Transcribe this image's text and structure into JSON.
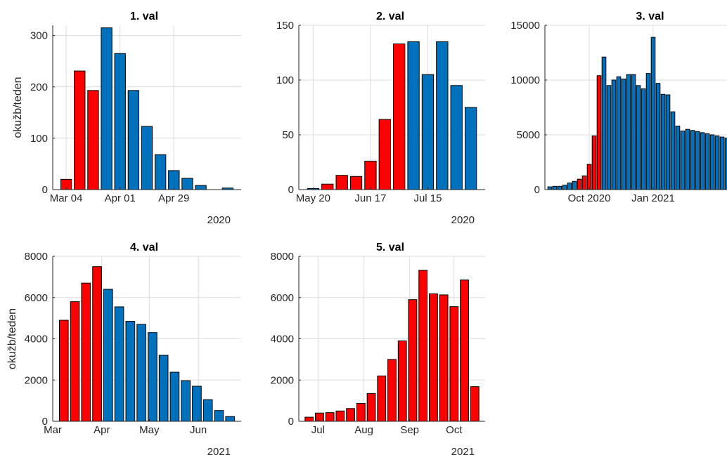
{
  "colors": {
    "red": "#ff0000",
    "blue": "#0072bd",
    "grid": "#dcdcdc",
    "axis": "#262626"
  },
  "chart_data": [
    {
      "type": "bar",
      "title": "1. val",
      "ylabel": "okužb/teden",
      "ylim": [
        0,
        320
      ],
      "yticks": [
        0,
        100,
        200,
        300
      ],
      "xlim": [
        0,
        14
      ],
      "xticks": [
        {
          "x": 1,
          "label": "Mar 04"
        },
        {
          "x": 5,
          "label": "Apr 01"
        },
        {
          "x": 9,
          "label": "Apr 29"
        }
      ],
      "year_label": "2020",
      "grid": true,
      "x": [
        1,
        2,
        3,
        4,
        5,
        6,
        7,
        8,
        9,
        10,
        11,
        12,
        13
      ],
      "values": [
        20,
        231,
        193,
        315,
        265,
        193,
        123,
        68,
        37,
        22,
        8,
        0,
        3
      ],
      "color": [
        "red",
        "red",
        "red",
        "blue",
        "blue",
        "blue",
        "blue",
        "blue",
        "blue",
        "blue",
        "blue",
        "blue",
        "blue"
      ]
    },
    {
      "type": "bar",
      "title": "2. val",
      "ylabel": "",
      "ylim": [
        0,
        150
      ],
      "yticks": [
        0,
        50,
        100,
        150
      ],
      "xlim": [
        0,
        13
      ],
      "xticks": [
        {
          "x": 1,
          "label": "May 20"
        },
        {
          "x": 5,
          "label": "Jun 17"
        },
        {
          "x": 9,
          "label": "Jul 15"
        }
      ],
      "year_label": "2020",
      "grid": true,
      "x": [
        1,
        2,
        3,
        4,
        5,
        6,
        7,
        8,
        9,
        10,
        11,
        12
      ],
      "values": [
        1,
        5,
        13,
        12,
        26,
        64,
        133,
        135,
        105,
        135,
        95,
        75
      ],
      "color": [
        "blue",
        "red",
        "red",
        "red",
        "red",
        "red",
        "red",
        "blue",
        "blue",
        "blue",
        "blue",
        "blue"
      ]
    },
    {
      "type": "bar",
      "title": "3. val",
      "ylabel": "",
      "ylim": [
        0,
        15000
      ],
      "yticks": [
        0,
        5000,
        10000,
        15000
      ],
      "xlim": [
        0,
        37
      ],
      "xticks": [
        {
          "x": 9,
          "label": "Oct 2020"
        },
        {
          "x": 22,
          "label": "Jan 2021"
        }
      ],
      "year_label": "",
      "grid": true,
      "x": [
        1,
        2,
        3,
        4,
        5,
        6,
        7,
        8,
        9,
        10,
        11,
        12,
        13,
        14,
        15,
        16,
        17,
        18,
        19,
        20,
        21,
        22,
        23,
        24,
        25,
        26,
        27,
        28,
        29,
        30,
        31,
        32,
        33,
        34,
        35,
        36,
        37
      ],
      "values": [
        250,
        300,
        300,
        400,
        600,
        750,
        950,
        1250,
        2300,
        4900,
        10400,
        12100,
        9500,
        10000,
        10300,
        10100,
        10500,
        10500,
        9500,
        9200,
        10600,
        13900,
        9700,
        8700,
        8650,
        7100,
        5800,
        5350,
        5500,
        5400,
        5300,
        5200,
        5100,
        5000,
        4900,
        4800,
        4700
      ],
      "color": [
        "blue",
        "blue",
        "blue",
        "blue",
        "blue",
        "blue",
        "red",
        "red",
        "red",
        "red",
        "red",
        "blue",
        "blue",
        "blue",
        "blue",
        "blue",
        "blue",
        "blue",
        "blue",
        "blue",
        "blue",
        "blue",
        "blue",
        "blue",
        "blue",
        "blue",
        "blue",
        "blue",
        "blue",
        "blue",
        "blue",
        "blue",
        "blue",
        "blue",
        "blue",
        "blue",
        "blue"
      ]
    },
    {
      "type": "bar",
      "title": "4. val",
      "ylabel": "okužb/teden",
      "ylim": [
        0,
        8000
      ],
      "yticks": [
        0,
        2000,
        4000,
        6000,
        8000
      ],
      "xlim": [
        0,
        17
      ],
      "xticks": [
        {
          "x": 0,
          "label": "Mar"
        },
        {
          "x": 4.43,
          "label": "Apr"
        },
        {
          "x": 8.71,
          "label": "May"
        },
        {
          "x": 13.14,
          "label": "Jun"
        }
      ],
      "year_label": "2021",
      "grid": true,
      "x": [
        1,
        2,
        3,
        4,
        5,
        6,
        7,
        8,
        9,
        10,
        11,
        12,
        13,
        14,
        15,
        16
      ],
      "values": [
        4900,
        5800,
        6700,
        7500,
        6400,
        5550,
        4850,
        4700,
        4300,
        3200,
        2380,
        1970,
        1700,
        1050,
        520,
        230
      ],
      "color": [
        "red",
        "red",
        "red",
        "red",
        "blue",
        "blue",
        "blue",
        "blue",
        "blue",
        "blue",
        "blue",
        "blue",
        "blue",
        "blue",
        "blue",
        "blue"
      ]
    },
    {
      "type": "bar",
      "title": "5. val",
      "ylabel": "",
      "ylim": [
        0,
        8000
      ],
      "yticks": [
        0,
        2000,
        4000,
        6000,
        8000
      ],
      "xlim": [
        0,
        18
      ],
      "xticks": [
        {
          "x": 1.86,
          "label": "Jul"
        },
        {
          "x": 6.29,
          "label": "Aug"
        },
        {
          "x": 10.71,
          "label": "Sep"
        },
        {
          "x": 15,
          "label": "Oct"
        }
      ],
      "year_label": "2021",
      "grid": true,
      "x": [
        1,
        2,
        3,
        4,
        5,
        6,
        7,
        8,
        9,
        10,
        11,
        12,
        13,
        14,
        15,
        16,
        17
      ],
      "values": [
        200,
        400,
        420,
        500,
        620,
        870,
        1350,
        2200,
        3000,
        3900,
        5900,
        7320,
        6180,
        6130,
        5560,
        6850,
        1680
      ],
      "color": [
        "red",
        "red",
        "red",
        "red",
        "red",
        "red",
        "red",
        "red",
        "red",
        "red",
        "red",
        "red",
        "red",
        "red",
        "red",
        "red",
        "red"
      ]
    }
  ]
}
